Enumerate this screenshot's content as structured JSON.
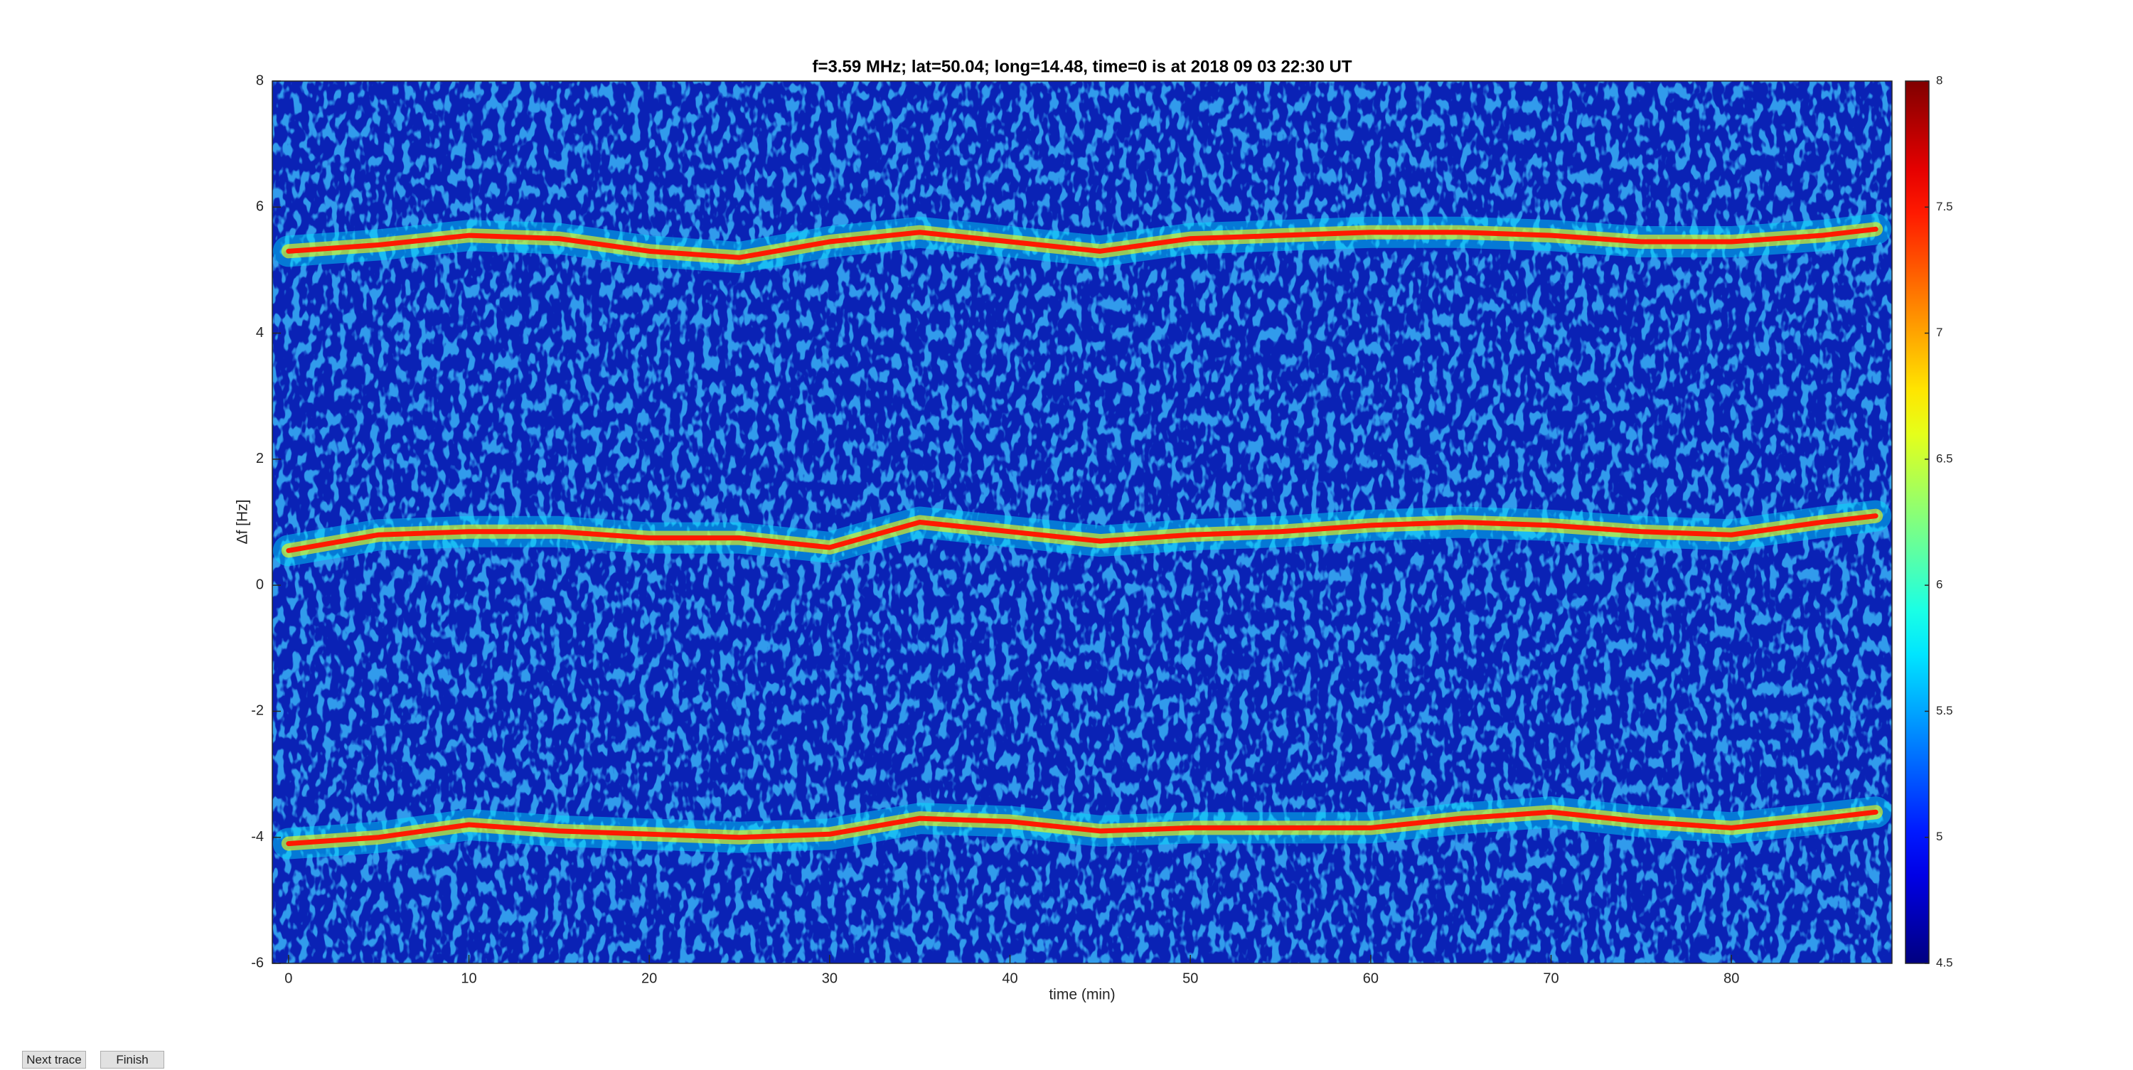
{
  "chart_data": {
    "type": "spectrogram",
    "title": "f=3.59 MHz;  lat=50.04; long=14.48, time=0 is at 2018 09 03 22:30 UT",
    "xlabel": "time (min)",
    "ylabel": "Δf [Hz]",
    "xlim": [
      -0.9,
      88.9
    ],
    "xticks": [
      0,
      10,
      20,
      30,
      40,
      50,
      60,
      70,
      80
    ],
    "ylim": [
      -6,
      8
    ],
    "yticks": [
      -6,
      -4,
      -2,
      0,
      2,
      4,
      6,
      8
    ],
    "colormap": "jet",
    "clim": [
      4.5,
      8
    ],
    "cticks": [
      4.5,
      5,
      5.5,
      6,
      6.5,
      7,
      7.5,
      8
    ],
    "x": [
      0,
      5,
      10,
      15,
      20,
      25,
      30,
      35,
      40,
      45,
      50,
      55,
      60,
      65,
      70,
      75,
      80,
      85,
      88
    ],
    "series": [
      {
        "color": "#ff1a00",
        "values": [
          5.3,
          5.4,
          5.55,
          5.5,
          5.3,
          5.2,
          5.45,
          5.6,
          5.45,
          5.3,
          5.5,
          5.55,
          5.6,
          5.6,
          5.55,
          5.45,
          5.45,
          5.55,
          5.65
        ]
      },
      {
        "color": "#ff1a00",
        "values": [
          0.55,
          0.8,
          0.85,
          0.85,
          0.75,
          0.75,
          0.6,
          1.0,
          0.85,
          0.7,
          0.8,
          0.85,
          0.95,
          1.0,
          0.95,
          0.85,
          0.8,
          1.0,
          1.1
        ]
      },
      {
        "color": "#ff1a00",
        "values": [
          -4.1,
          -4.0,
          -3.8,
          -3.9,
          -3.95,
          -4.0,
          -3.95,
          -3.7,
          -3.75,
          -3.9,
          -3.85,
          -3.85,
          -3.85,
          -3.7,
          -3.6,
          -3.75,
          -3.85,
          -3.7,
          -3.6
        ]
      }
    ]
  },
  "buttons": [
    "Next trace",
    "Finish"
  ]
}
